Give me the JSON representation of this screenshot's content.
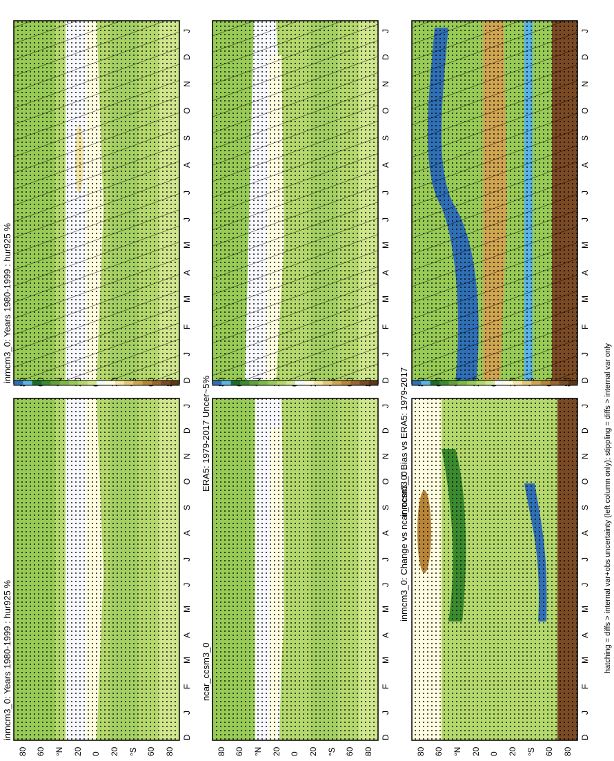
{
  "footer_note": "hatching = diffs > internal var+obs uncertainty (left column only); stippling = diffs > internal var only",
  "colorbar_abs": {
    "ticks": [
      "120",
      "110",
      "100",
      "90",
      "80",
      "70",
      "60",
      "50",
      "40",
      "30",
      "20"
    ]
  },
  "colorbar_diff": {
    "ticks": [
      "10",
      "8",
      "6",
      "4",
      "2",
      "0",
      "-2",
      "-4",
      "-6",
      "-8",
      "-10"
    ]
  },
  "colors": {
    "abs": [
      "#2f6fb5",
      "#5ab4e5",
      "#1b6b2a",
      "#3a8a2e",
      "#5ea33a",
      "#7bbb42",
      "#98cb56",
      "#b4d86c",
      "#cfe68c",
      "#f4f8ff",
      "#fffde0",
      "#f3e6a6",
      "#e2c87a",
      "#d0a552",
      "#b88538",
      "#9a6630",
      "#7a4a24",
      "#5c3618"
    ],
    "white": "#f7f9ff"
  },
  "chart_data": [
    {
      "type": "heatmap",
      "title": "inmcm3_0: Years 1980-1999 : hur925 %",
      "x_ticks": [
        "D",
        "J",
        "F",
        "M",
        "A",
        "M",
        "J",
        "J",
        "A",
        "S",
        "O",
        "N",
        "D",
        "J"
      ],
      "y_ticks": [
        "80",
        "60",
        "°N",
        "20",
        "0",
        "20",
        "°S",
        "60",
        "80"
      ],
      "hatching": true,
      "stippling": true,
      "colorbar": "abs"
    },
    {
      "type": "heatmap",
      "title": "inmcm3_0: Years 1980-1999 : hur925 %",
      "x_ticks": [
        "D",
        "J",
        "F",
        "M",
        "A",
        "M",
        "J",
        "J",
        "A",
        "S",
        "O",
        "N",
        "D",
        "J"
      ],
      "y_ticks": [
        "80",
        "60",
        "°N",
        "20",
        "0",
        "20",
        "°S",
        "60",
        "80"
      ],
      "hatching": false,
      "stippling": true,
      "colorbar": "abs"
    },
    {
      "type": "heatmap",
      "title": "ERA5: 1979-2017 Uncer~5%",
      "x_ticks": [
        "D",
        "J",
        "F",
        "M",
        "A",
        "M",
        "J",
        "J",
        "A",
        "S",
        "O",
        "N",
        "D",
        "J"
      ],
      "y_ticks": [
        "80",
        "60",
        "°N",
        "20",
        "0",
        "20",
        "°S",
        "60",
        "80"
      ],
      "hatching": true,
      "stippling": true,
      "colorbar": "abs"
    },
    {
      "type": "heatmap",
      "title": "ncar_ccsm3_0",
      "x_ticks": [
        "D",
        "J",
        "F",
        "M",
        "A",
        "M",
        "J",
        "J",
        "A",
        "S",
        "O",
        "N",
        "D",
        "J"
      ],
      "y_ticks": [
        "80",
        "60",
        "°N",
        "20",
        "0",
        "20",
        "°S",
        "60",
        "80"
      ],
      "hatching": false,
      "stippling": true,
      "colorbar": "abs"
    },
    {
      "type": "heatmap",
      "title": "inmcm3_0: Bias vs ERA5: 1979-2017",
      "x_ticks": [
        "D",
        "J",
        "F",
        "M",
        "A",
        "M",
        "J",
        "J",
        "A",
        "S",
        "O",
        "N",
        "D",
        "J"
      ],
      "y_ticks": [
        "80",
        "60",
        "°N",
        "20",
        "0",
        "20",
        "°S",
        "60",
        "80"
      ],
      "hatching": true,
      "stippling": true,
      "colorbar": "diff"
    },
    {
      "type": "heatmap",
      "title": "inmcm3_0: Change vs ncar_ccsm3_0",
      "x_ticks": [
        "D",
        "J",
        "F",
        "M",
        "A",
        "M",
        "J",
        "J",
        "A",
        "S",
        "O",
        "N",
        "D",
        "J"
      ],
      "y_ticks": [
        "80",
        "60",
        "°N",
        "20",
        "0",
        "20",
        "°S",
        "60",
        "80"
      ],
      "hatching": false,
      "stippling": true,
      "colorbar": "diff"
    }
  ]
}
